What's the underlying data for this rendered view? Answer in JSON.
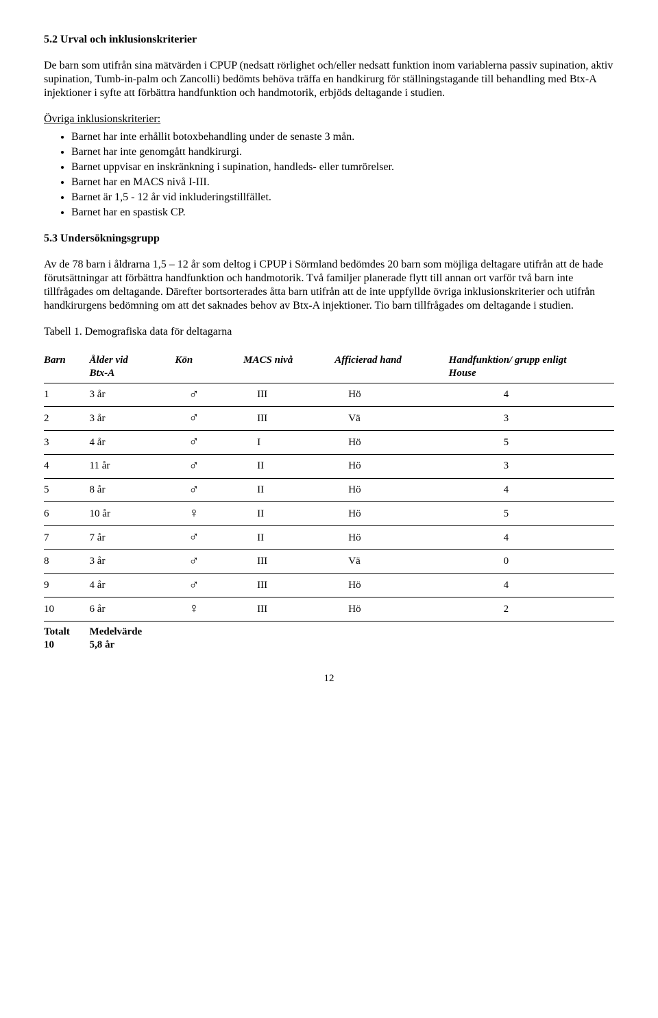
{
  "section_52_title": "5.2 Urval och inklusionskriterier",
  "p1": "De barn som utifrån sina mätvärden i CPUP (nedsatt rörlighet och/eller nedsatt funktion inom variablerna passiv supination, aktiv supination, Tumb-in-palm och Zancolli) bedömts behöva träffa en handkirurg för ställningstagande till behandling med Btx-A injektioner i syfte att förbättra handfunktion och handmotorik, erbjöds deltagande i studien.",
  "inclusion_heading": "Övriga inklusionskriterier:",
  "bullets": [
    "Barnet har inte erhållit botoxbehandling under de senaste 3 mån.",
    "Barnet har inte genomgått handkirurgi.",
    "Barnet uppvisar en inskränkning i supination, handleds- eller tumrörelser.",
    "Barnet har en MACS nivå I-III.",
    "Barnet är 1,5 - 12 år vid inkluderingstillfället.",
    "Barnet har en spastisk CP."
  ],
  "section_53_title": "5.3 Undersökningsgrupp",
  "p2": "Av de 78 barn i åldrarna 1,5 – 12 år som deltog i CPUP i Sörmland bedömdes 20 barn som möjliga deltagare utifrån att de hade förutsättningar att förbättra handfunktion och handmotorik. Två familjer planerade flytt till annan ort varför två barn inte tillfrågades om deltagande. Därefter bortsorterades åtta barn utifrån att de inte uppfyllde övriga inklusionskriterier och utifrån handkirurgens bedömning om att det saknades behov av Btx-A injektioner. Tio barn tillfrågades om deltagande i studien.",
  "table_caption": "Tabell 1. Demografiska data för deltagarna",
  "columns": {
    "barn": "Barn",
    "alder_line1": "Ålder vid",
    "alder_line2": "Btx-A",
    "kon": "Kön",
    "macs": "MACS nivå",
    "hand": "Afficierad hand",
    "hf_line1": "Handfunktion/ grupp enligt",
    "hf_line2": "House"
  },
  "rows": [
    {
      "barn": "1",
      "alder": "3 år",
      "kon": "♂",
      "macs": "III",
      "hand": "Hö",
      "hf": "4"
    },
    {
      "barn": "2",
      "alder": "3 år",
      "kon": "♂",
      "macs": "III",
      "hand": "Vä",
      "hf": "3"
    },
    {
      "barn": "3",
      "alder": "4 år",
      "kon": "♂",
      "macs": "I",
      "hand": "Hö",
      "hf": "5"
    },
    {
      "barn": "4",
      "alder": "11 år",
      "kon": "♂",
      "macs": "II",
      "hand": "Hö",
      "hf": "3"
    },
    {
      "barn": "5",
      "alder": "8 år",
      "kon": "♂",
      "macs": "II",
      "hand": "Hö",
      "hf": "4"
    },
    {
      "barn": "6",
      "alder": "10 år",
      "kon": "♀",
      "macs": "II",
      "hand": "Hö",
      "hf": "5"
    },
    {
      "barn": "7",
      "alder": "7 år",
      "kon": "♂",
      "macs": "II",
      "hand": "Hö",
      "hf": "4"
    },
    {
      "barn": "8",
      "alder": "3 år",
      "kon": "♂",
      "macs": "III",
      "hand": "Vä",
      "hf": "0"
    },
    {
      "barn": "9",
      "alder": "4 år",
      "kon": "♂",
      "macs": "III",
      "hand": "Hö",
      "hf": "4"
    },
    {
      "barn": "10",
      "alder": "6 år",
      "kon": "♀",
      "macs": "III",
      "hand": "Hö",
      "hf": "2"
    }
  ],
  "total": {
    "label_line1": "Totalt",
    "label_line2": "10",
    "value_line1": "Medelvärde",
    "value_line2": "5,8 år"
  },
  "page_number": "12"
}
